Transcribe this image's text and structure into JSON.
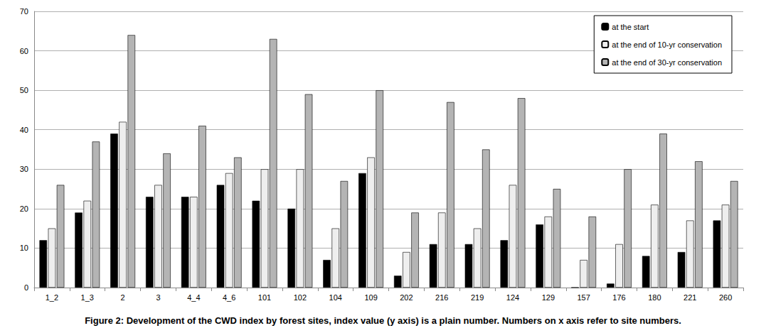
{
  "chart_data": {
    "type": "bar",
    "title": "Figure 2: Development of the CWD index by forest sites, index value (y axis) is a plain number. Numbers on x axis refer to site numbers.",
    "categories": [
      "1_2",
      "1_3",
      "2",
      "3",
      "4_4",
      "4_6",
      "101",
      "102",
      "104",
      "109",
      "202",
      "216",
      "219",
      "124",
      "129",
      "157",
      "176",
      "180",
      "221",
      "260"
    ],
    "series": [
      {
        "name": "at the start",
        "color": "#000000",
        "values": [
          12,
          19,
          39,
          23,
          23,
          26,
          22,
          20,
          7,
          29,
          3,
          11,
          11,
          12,
          16,
          0,
          1,
          8,
          9,
          17
        ]
      },
      {
        "name": "at the end of 10-yr conservation",
        "color": "#eeeeee",
        "values": [
          15,
          22,
          42,
          26,
          23,
          29,
          30,
          30,
          15,
          33,
          9,
          19,
          15,
          26,
          18,
          7,
          11,
          21,
          17,
          21
        ]
      },
      {
        "name": "at the end of 30-yr conservation",
        "color": "#b4b4b4",
        "values": [
          26,
          37,
          64,
          34,
          41,
          33,
          63,
          49,
          27,
          50,
          19,
          47,
          35,
          48,
          25,
          18,
          30,
          39,
          32,
          27
        ]
      }
    ],
    "ylim": [
      0,
      70
    ],
    "yticks": [
      0,
      10,
      20,
      30,
      40,
      50,
      60,
      70
    ],
    "grid": true,
    "legend": "top-right"
  }
}
